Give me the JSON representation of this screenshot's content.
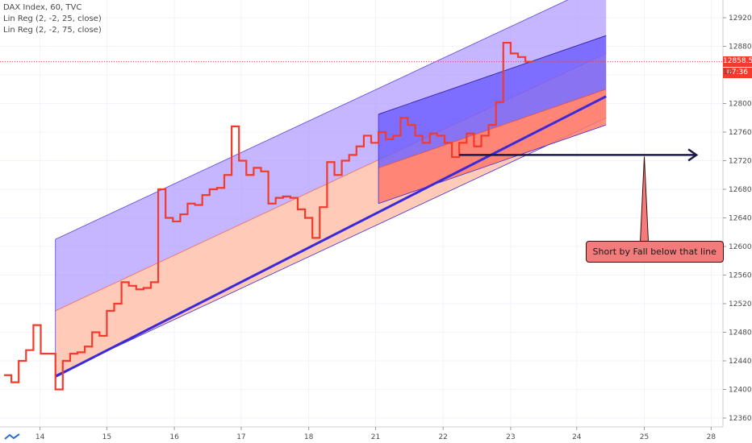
{
  "legend": {
    "symbol": "DAX Index, 60, TVC",
    "study1": "Lin Reg (2, -2, 25, close)",
    "study2": "Lin Reg (2, -2, 75, close)"
  },
  "price_tags": {
    "last_price": "12858.5",
    "countdown": "07:36",
    "hidden_label": "12"
  },
  "annotation": {
    "text": "Short by Fall below that line"
  },
  "colors": {
    "price_line": "#f23b2c",
    "upper_channel_fill": "#b39cff",
    "lower_channel_fill": "#ffc4b0",
    "short_upper_fill": "#6b5cff",
    "short_lower_fill": "#ff7a6b",
    "trendline": "#3a2ad9",
    "arrow": "#1a1a4a",
    "callout_fill": "#f47b7b",
    "last_price_tag": "#f23b2c"
  },
  "chart_data": {
    "type": "line",
    "title": "",
    "ylim": [
      12350,
      12945
    ],
    "y_ticks": [
      12360.0,
      12400.0,
      12440.0,
      12480.0,
      12520.0,
      12560.0,
      12600.0,
      12640.0,
      12680.0,
      12720.0,
      12760.0,
      12800.0,
      12840.0,
      12880.0,
      12920.0
    ],
    "x_ticks": [
      "14",
      "15",
      "16",
      "17",
      "18",
      "21",
      "22",
      "23",
      "24",
      "25",
      "28"
    ],
    "series": [
      {
        "values": [
          [
            0,
            12420
          ],
          [
            1,
            12410
          ],
          [
            2,
            12440
          ],
          [
            3,
            12455
          ],
          [
            4,
            12490
          ],
          [
            5,
            12450
          ],
          [
            6,
            12450
          ],
          [
            7,
            12400
          ],
          [
            8,
            12440
          ],
          [
            9,
            12450
          ],
          [
            10,
            12452
          ],
          [
            11,
            12460
          ],
          [
            12,
            12480
          ],
          [
            13,
            12475
          ],
          [
            14,
            12510
          ],
          [
            15,
            12520
          ],
          [
            16,
            12550
          ],
          [
            17,
            12545
          ],
          [
            18,
            12540
          ],
          [
            19,
            12542
          ],
          [
            20,
            12550
          ],
          [
            21,
            12680
          ],
          [
            22,
            12640
          ],
          [
            23,
            12635
          ],
          [
            24,
            12645
          ],
          [
            25,
            12660
          ],
          [
            26,
            12658
          ],
          [
            27,
            12672
          ],
          [
            28,
            12680
          ],
          [
            29,
            12682
          ],
          [
            30,
            12700
          ],
          [
            31,
            12768
          ],
          [
            32,
            12720
          ],
          [
            33,
            12700
          ],
          [
            34,
            12710
          ],
          [
            35,
            12705
          ],
          [
            36,
            12660
          ],
          [
            37,
            12668
          ],
          [
            38,
            12670
          ],
          [
            39,
            12668
          ],
          [
            40,
            12652
          ],
          [
            41,
            12640
          ],
          [
            42,
            12612
          ],
          [
            43,
            12655
          ],
          [
            44,
            12718
          ],
          [
            45,
            12700
          ],
          [
            46,
            12720
          ],
          [
            47,
            12728
          ],
          [
            48,
            12740
          ],
          [
            49,
            12755
          ],
          [
            50,
            12745
          ],
          [
            51,
            12760
          ],
          [
            52,
            12750
          ],
          [
            53,
            12755
          ],
          [
            54,
            12780
          ],
          [
            55,
            12770
          ],
          [
            56,
            12755
          ],
          [
            57,
            12745
          ],
          [
            58,
            12758
          ],
          [
            59,
            12755
          ],
          [
            60,
            12745
          ],
          [
            61,
            12725
          ],
          [
            62,
            12745
          ],
          [
            63,
            12758
          ],
          [
            64,
            12740
          ],
          [
            65,
            12755
          ],
          [
            66,
            12770
          ],
          [
            67,
            12802
          ],
          [
            68,
            12885
          ],
          [
            69,
            12870
          ],
          [
            70,
            12865
          ],
          [
            71,
            12858.5
          ]
        ]
      }
    ],
    "regression_channels": [
      {
        "label": "Lin Reg (2, -2, 75, close)",
        "start_x": 7,
        "end_x": 82,
        "mid_start": 12510,
        "mid_end": 12870,
        "upper_offset": 100,
        "lower_offset": -90
      },
      {
        "label": "Lin Reg (2, -2, 25, close)",
        "start_x": 51,
        "end_x": 82,
        "mid_start": 12710,
        "mid_end": 12820,
        "upper_offset": 75,
        "lower_offset": -50
      }
    ],
    "trendline": {
      "start": [
        7,
        12418
      ],
      "end": [
        82,
        12810
      ]
    },
    "short_level": 12728,
    "last_price": 12858.5
  }
}
